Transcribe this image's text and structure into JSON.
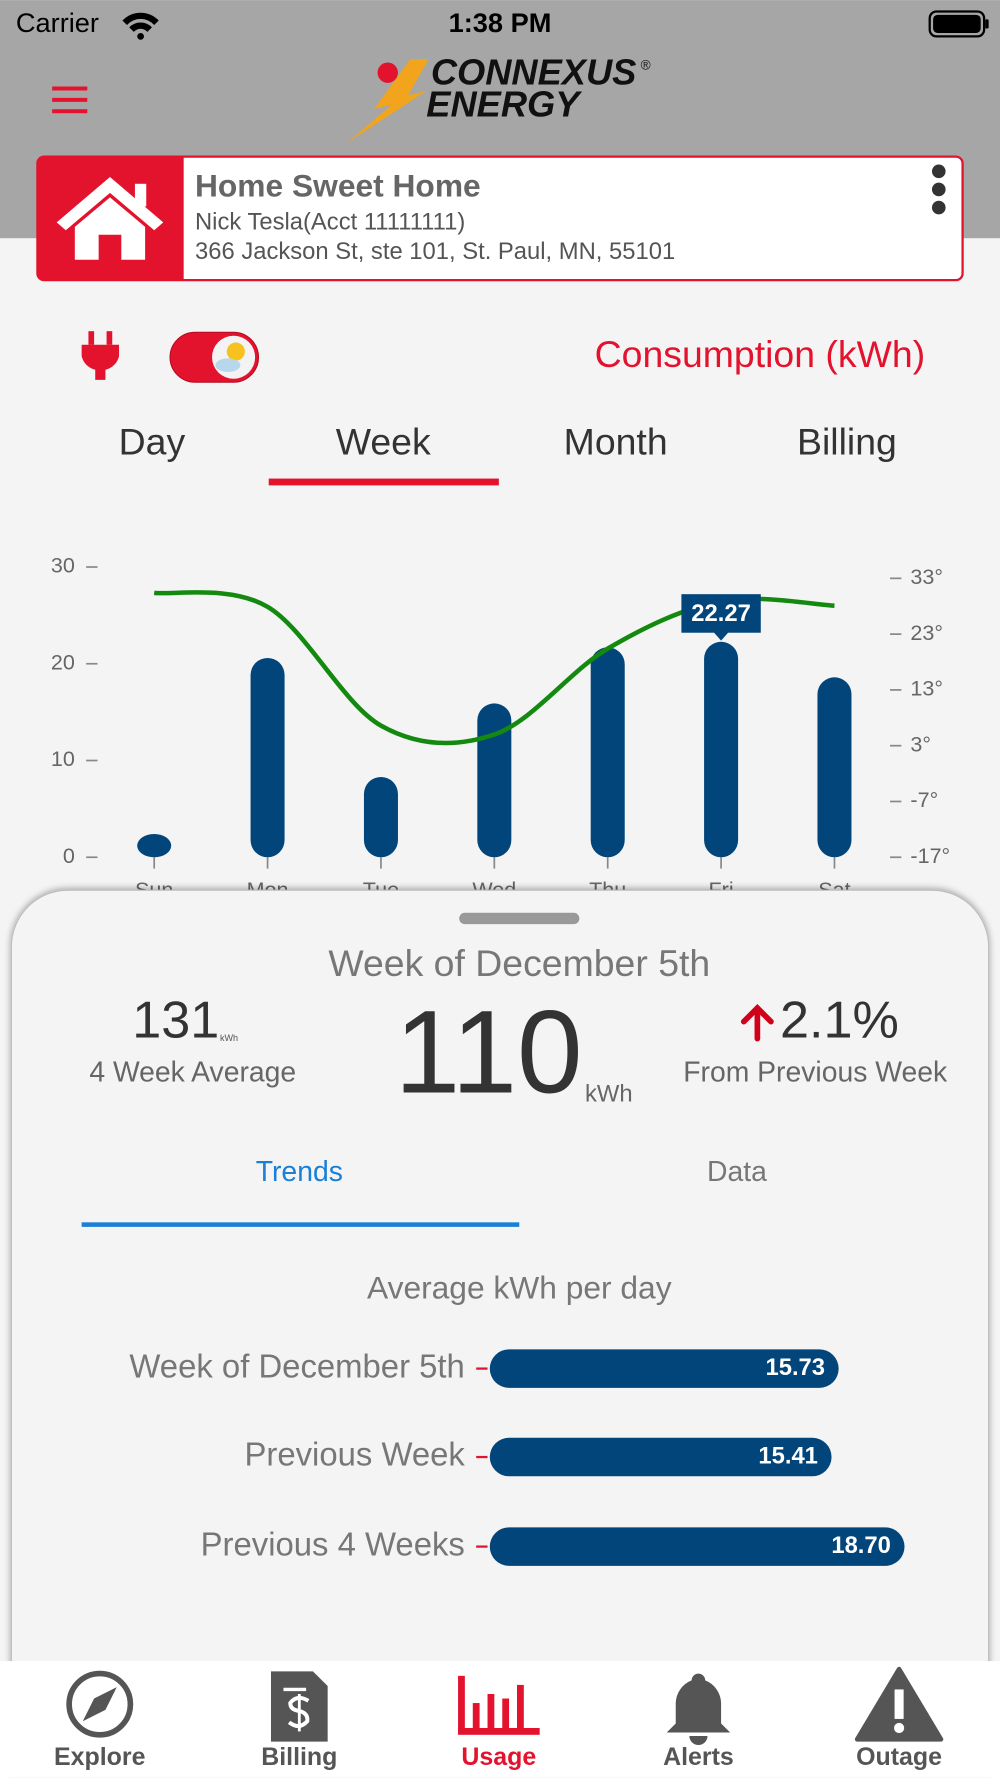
{
  "status_bar": {
    "carrier": "Carrier",
    "time": "1:38 PM"
  },
  "header": {
    "logo_brand": "CONNEXUS",
    "logo_mark": "®",
    "logo_line2": "ENERGY"
  },
  "account": {
    "name": "Home Sweet Home",
    "holder": "Nick Tesla(Acct 11111111)",
    "address": "366 Jackson St, ste 101, St. Paul, MN, 55101"
  },
  "usage_mode": "Consumption (kWh)",
  "period_tabs": [
    "Day",
    "Week",
    "Month",
    "Billing"
  ],
  "chart_data": [
    {
      "type": "bar",
      "categories": [
        "Sun",
        "Mon",
        "Tue",
        "Wed",
        "Thu",
        "Fri",
        "Sat"
      ],
      "series": [
        {
          "color": "#02457a",
          "values": [
            2.4,
            20.6,
            8.3,
            15.9,
            21.7,
            22.27,
            18.6
          ]
        },
        {
          "type": "line",
          "axis": "y2",
          "color": "#138a0f",
          "values": [
            30.4,
            27.9,
            6.6,
            5.0,
            20.4,
            28.9,
            28.1
          ]
        }
      ],
      "ylim": [
        0,
        30
      ],
      "yticks": [
        0,
        10,
        20,
        30
      ],
      "y2lim": [
        -17,
        33
      ],
      "y2ticks": [
        {
          "value": -17,
          "label": "-17°"
        },
        {
          "value": -7,
          "label": "-7°"
        },
        {
          "value": 3,
          "label": "3°"
        },
        {
          "value": 13,
          "label": "13°"
        },
        {
          "value": 23,
          "label": "23°"
        },
        {
          "value": 33,
          "label": "33°"
        }
      ]
    },
    {
      "type": "hbar",
      "title": "Average kWh per day",
      "categories": [
        "Week of December 5th",
        "Previous Week",
        "Previous 4 Weeks"
      ],
      "values": [
        15.73,
        15.41,
        18.7
      ],
      "value_labels": [
        "15.73",
        "15.41",
        "18.70"
      ],
      "color": "#02457a"
    }
  ],
  "summary": {
    "period": "Week of December 5th",
    "average_value": "131",
    "average_unit": "kWh",
    "average_label": "4 Week Average",
    "total_value": "110",
    "total_unit": "kWh",
    "change": "2.1%",
    "change_label": "From Previous Week"
  },
  "detail_tabs": [
    "Trends",
    "Data"
  ],
  "nav": [
    "Explore",
    "Billing",
    "Usage",
    "Alerts",
    "Outage"
  ]
}
